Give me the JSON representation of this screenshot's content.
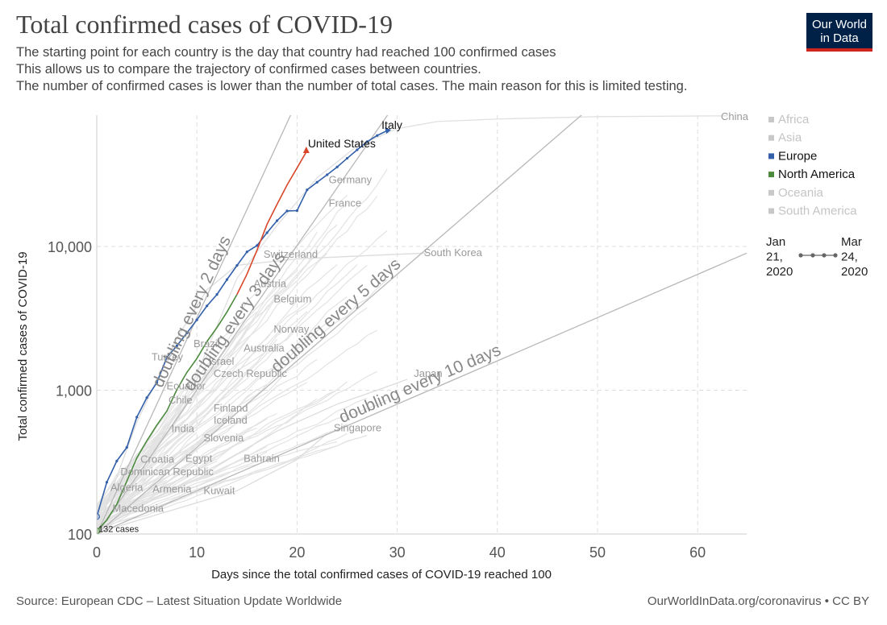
{
  "title": "Total confirmed cases of COVID-19",
  "subtitle_lines": [
    "The starting point for each country is the day that country had reached 100 confirmed cases",
    " This allows us to compare the trajectory of confirmed cases between countries.",
    " The number of confirmed cases is lower than the number of total cases. The main reason for this is limited testing."
  ],
  "logo": {
    "line1": "Our World",
    "line2": "in Data",
    "bg_color": "#002147",
    "accent_color": "#ce261e"
  },
  "source": "Source: European CDC – Latest Situation Update Worldwide",
  "credit": "OurWorldInData.org/coronavirus • CC BY",
  "chart_data": {
    "type": "line",
    "title": "Total confirmed cases of COVID-19",
    "xlabel": "Days since the total confirmed cases of COVID-19 reached 100",
    "ylabel": "Total confirmed cases of COVID-19",
    "x_ticks": [
      0,
      10,
      20,
      30,
      40,
      50,
      60
    ],
    "xlim": [
      0,
      65
    ],
    "y_scale": "log",
    "y_ticks": [
      {
        "value": 100,
        "label": "100"
      },
      {
        "value": 1000,
        "label": "1,000"
      },
      {
        "value": 10000,
        "label": "10,000"
      }
    ],
    "ylim": [
      100,
      90000
    ],
    "grid": true,
    "legend_position": "right",
    "legend": [
      {
        "name": "Africa",
        "color": "#c8c8c8",
        "active": false
      },
      {
        "name": "Asia",
        "color": "#c8c8c8",
        "active": false
      },
      {
        "name": "Europe",
        "color": "#3360a9",
        "active": true
      },
      {
        "name": "North America",
        "color": "#4c8a3e",
        "active": true
      },
      {
        "name": "Oceania",
        "color": "#c8c8c8",
        "active": false
      },
      {
        "name": "South America",
        "color": "#c8c8c8",
        "active": false
      }
    ],
    "timeline": {
      "start": [
        "Jan",
        "21,",
        "2020"
      ],
      "end": [
        "Mar",
        "24,",
        "2020"
      ]
    },
    "reference_lines": [
      {
        "label": "doubling every 2 days",
        "doubling_days": 2
      },
      {
        "label": "doubling every 3 days",
        "doubling_days": 3
      },
      {
        "label": "doubling every 5 days",
        "doubling_days": 5
      },
      {
        "label": "doubling every 10 days",
        "doubling_days": 10
      }
    ],
    "highlighted_series": [
      {
        "name": "Italy",
        "region": "Europe",
        "color": "#3360a9",
        "x": [
          0,
          1,
          2,
          3,
          4,
          5,
          6,
          7,
          8,
          9,
          10,
          11,
          12,
          13,
          14,
          15,
          16,
          17,
          18,
          19,
          20,
          21,
          22,
          23,
          24,
          25,
          26,
          27,
          28,
          29
        ],
        "y": [
          132,
          229,
          322,
          400,
          650,
          888,
          1128,
          1694,
          2036,
          2502,
          3089,
          3858,
          4636,
          5883,
          7375,
          9172,
          10149,
          12462,
          15113,
          17660,
          17750,
          24747,
          27980,
          31506,
          35713,
          41035,
          47021,
          53578,
          59138,
          63927
        ]
      },
      {
        "name": "United States",
        "region": "North America",
        "color": "#4c8a3e",
        "end_color": "#d9472b",
        "x": [
          0,
          1,
          2,
          3,
          4,
          5,
          6,
          7,
          8,
          9,
          10,
          11,
          12,
          13,
          14,
          15,
          16,
          17,
          18,
          19,
          20,
          21
        ],
        "y": [
          105,
          125,
          161,
          233,
          338,
          445,
          572,
          717,
          1010,
          1330,
          1663,
          2179,
          2727,
          3499,
          4632,
          6421,
          9415,
          14250,
          19624,
          26747,
          35206,
          46442
        ]
      }
    ],
    "country_labels": [
      {
        "name": "Italy",
        "x": 29,
        "y": 63927,
        "highlight": true
      },
      {
        "name": "United States",
        "x": 21,
        "y": 46442,
        "highlight": true
      },
      {
        "name": "China",
        "x": 63,
        "y": 80000
      },
      {
        "name": "Germany",
        "x": 23,
        "y": 29000
      },
      {
        "name": "France",
        "x": 23,
        "y": 20000
      },
      {
        "name": "Switzerland",
        "x": 16.5,
        "y": 8800
      },
      {
        "name": "South Korea",
        "x": 32.5,
        "y": 9000
      },
      {
        "name": "Austria",
        "x": 15.5,
        "y": 5500
      },
      {
        "name": "Belgium",
        "x": 17.5,
        "y": 4300
      },
      {
        "name": "Norway",
        "x": 17.5,
        "y": 2650
      },
      {
        "name": "Australia",
        "x": 14.5,
        "y": 1950
      },
      {
        "name": "Brazil",
        "x": 9.5,
        "y": 2100
      },
      {
        "name": "Turkey",
        "x": 5.3,
        "y": 1700
      },
      {
        "name": "Israel",
        "x": 11,
        "y": 1580
      },
      {
        "name": "Czech Republic",
        "x": 11.5,
        "y": 1300
      },
      {
        "name": "Ecuador",
        "x": 6.8,
        "y": 1070
      },
      {
        "name": "Chile",
        "x": 7,
        "y": 850
      },
      {
        "name": "Japan",
        "x": 31.5,
        "y": 1300
      },
      {
        "name": "Finland",
        "x": 11.5,
        "y": 750
      },
      {
        "name": "Iceland",
        "x": 11.5,
        "y": 615
      },
      {
        "name": "India",
        "x": 7.3,
        "y": 540
      },
      {
        "name": "Slovenia",
        "x": 10.5,
        "y": 465
      },
      {
        "name": "Singapore",
        "x": 23.5,
        "y": 545
      },
      {
        "name": "Croatia",
        "x": 4.2,
        "y": 330
      },
      {
        "name": "Egypt",
        "x": 8.7,
        "y": 335
      },
      {
        "name": "Bahrain",
        "x": 14.5,
        "y": 335
      },
      {
        "name": "Dominican Republic",
        "x": 2.2,
        "y": 270
      },
      {
        "name": "Algeria",
        "x": 1.2,
        "y": 210
      },
      {
        "name": "Armenia",
        "x": 5.4,
        "y": 205
      },
      {
        "name": "Kuwait",
        "x": 10.5,
        "y": 200
      },
      {
        "name": "Macedonia",
        "x": 1.4,
        "y": 150
      }
    ],
    "annotations": [
      {
        "text": "132 cases",
        "x": 0,
        "y": 132
      }
    ]
  }
}
